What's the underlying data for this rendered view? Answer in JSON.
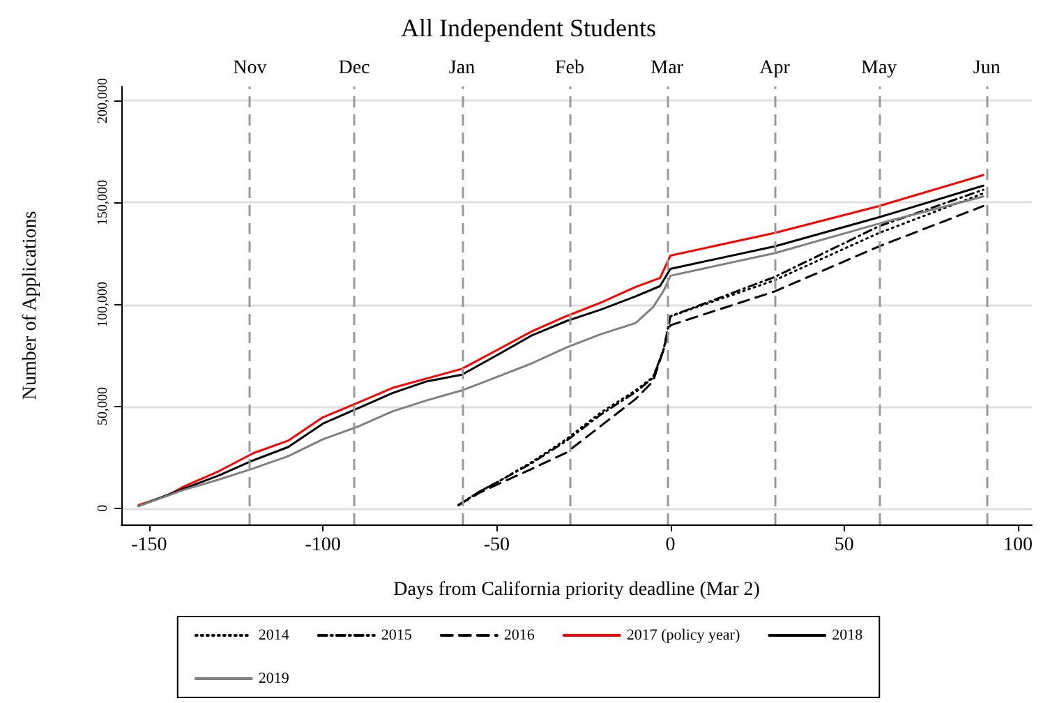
{
  "chart_data": {
    "type": "line",
    "title": "All Independent Students",
    "xlabel": "Days from California priority deadline (Mar 2)",
    "ylabel": "Number of Applications",
    "xlim": [
      -158,
      104
    ],
    "xticks": [
      -150,
      -100,
      -50,
      0,
      50,
      100
    ],
    "ylim": [
      -8000,
      207000
    ],
    "yticks": [
      {
        "value": 0,
        "label": "0"
      },
      {
        "value": 50000,
        "label": "50,000"
      },
      {
        "value": 100000,
        "label": "100,000"
      },
      {
        "value": 150000,
        "label": "150,000"
      },
      {
        "value": 200000,
        "label": "200,000"
      }
    ],
    "grid": "y",
    "legend": "bottom",
    "marker": "none",
    "ref_lines": [
      {
        "axis": "x",
        "value": -121,
        "label": "Nov",
        "color": "#999999",
        "line_style": "dashed"
      },
      {
        "axis": "x",
        "value": -91,
        "label": "Dec",
        "color": "#999999",
        "line_style": "dashed"
      },
      {
        "axis": "x",
        "value": -60,
        "label": "Jan",
        "color": "#999999",
        "line_style": "dashed"
      },
      {
        "axis": "x",
        "value": -29,
        "label": "Feb",
        "color": "#999999",
        "line_style": "dashed"
      },
      {
        "axis": "x",
        "value": -1,
        "label": "Mar",
        "color": "#999999",
        "line_style": "dashed"
      },
      {
        "axis": "x",
        "value": 30,
        "label": "Apr",
        "color": "#999999",
        "line_style": "dashed"
      },
      {
        "axis": "x",
        "value": 60,
        "label": "May",
        "color": "#999999",
        "line_style": "dashed"
      },
      {
        "axis": "x",
        "value": 91,
        "label": "Jun",
        "color": "#999999",
        "line_style": "dashed"
      }
    ],
    "series": [
      {
        "name": "2014",
        "color": "#000000",
        "line_style": "dotted",
        "x": [
          -61,
          -55,
          -50,
          -40,
          -30,
          -20,
          -10,
          -5,
          -2,
          0,
          30,
          60,
          90
        ],
        "values": [
          1500,
          8100,
          12600,
          22500,
          33800,
          47000,
          57800,
          64400,
          77700,
          94200,
          111900,
          135100,
          154500
        ]
      },
      {
        "name": "2015",
        "color": "#000000",
        "line_style": "dashdot",
        "x": [
          -61,
          -55,
          -50,
          -40,
          -30,
          -20,
          -10,
          -5,
          -2,
          0,
          30,
          60,
          90
        ],
        "values": [
          1500,
          8100,
          12600,
          22000,
          33000,
          46000,
          57000,
          64000,
          77700,
          94200,
          113500,
          138400,
          156300
        ]
      },
      {
        "name": "2016",
        "color": "#000000",
        "line_style": "dashed",
        "x": [
          -61,
          -55,
          -50,
          -40,
          -30,
          -20,
          -10,
          -5,
          -2,
          0,
          30,
          60,
          90
        ],
        "values": [
          1500,
          7500,
          11500,
          19200,
          27200,
          40400,
          53600,
          62300,
          77700,
          89800,
          106400,
          128500,
          148300
        ]
      },
      {
        "name": "2017 (policy year)",
        "color": "#ff0000",
        "line_style": "solid",
        "x": [
          -153,
          -145,
          -140,
          -130,
          -120,
          -110,
          -100,
          -90,
          -80,
          -60,
          -50,
          -40,
          -30,
          -20,
          -10,
          -3,
          0,
          30,
          60,
          90
        ],
        "values": [
          1500,
          6000,
          10600,
          18100,
          27000,
          33100,
          44600,
          51700,
          59000,
          68400,
          77500,
          86700,
          94200,
          100900,
          108600,
          113000,
          124000,
          135100,
          148300,
          163500
        ]
      },
      {
        "name": "2018",
        "color": "#000000",
        "line_style": "solid",
        "x": [
          -153,
          -140,
          -130,
          -120,
          -110,
          -100,
          -90,
          -80,
          -70,
          -60,
          -50,
          -40,
          -30,
          -20,
          -10,
          -3,
          0,
          30,
          60,
          90
        ],
        "values": [
          1000,
          9600,
          16000,
          23500,
          30000,
          41500,
          49000,
          56500,
          62300,
          65500,
          75000,
          84700,
          91800,
          97500,
          104000,
          109000,
          117500,
          128500,
          142800,
          158300
        ]
      },
      {
        "name": "2019",
        "color": "#808080",
        "line_style": "solid",
        "x": [
          -153,
          -140,
          -130,
          -120,
          -110,
          -100,
          -90,
          -80,
          -70,
          -60,
          -50,
          -40,
          -30,
          -20,
          -10,
          -5,
          -2,
          0,
          30,
          60,
          90
        ],
        "values": [
          1000,
          9000,
          14000,
          19500,
          25500,
          33800,
          40000,
          47500,
          53000,
          57800,
          64400,
          71000,
          78800,
          85400,
          90900,
          98700,
          106600,
          114100,
          125200,
          139700,
          153000
        ]
      }
    ]
  }
}
